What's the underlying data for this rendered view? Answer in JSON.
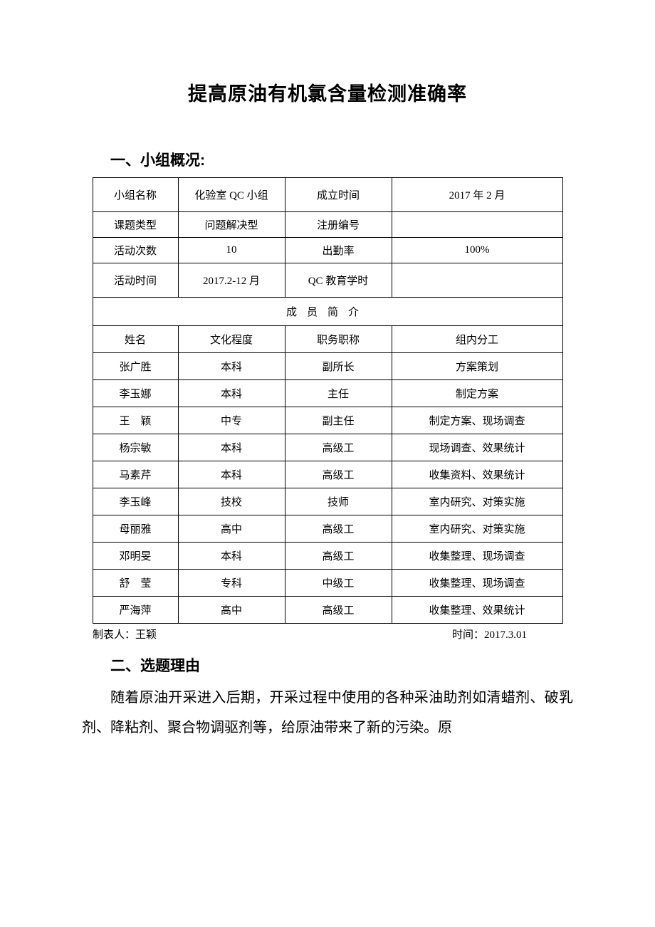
{
  "title": "提高原油有机氯含量检测准确率",
  "section1": {
    "heading": "一、小组概况:",
    "meta": [
      {
        "label": "小组名称",
        "value": "化验室 QC 小组",
        "label2": "成立时间",
        "value2": "2017 年 2 月"
      },
      {
        "label": "课题类型",
        "value": "问题解决型",
        "label2": "注册编号",
        "value2": ""
      },
      {
        "label": "活动次数",
        "value": "10",
        "label2": "出勤率",
        "value2": "100%"
      },
      {
        "label": "活动时间",
        "value": "2017.2-12 月",
        "label2": "QC 教育学时",
        "value2": ""
      }
    ],
    "members_header": "成员简介",
    "member_cols": {
      "name": "姓名",
      "edu": "文化程度",
      "title": "职务职称",
      "role": "组内分工"
    },
    "members": [
      {
        "name": "张广胜",
        "edu": "本科",
        "title": "副所长",
        "role": "方案策划"
      },
      {
        "name": "李玉娜",
        "edu": "本科",
        "title": "主任",
        "role": "制定方案"
      },
      {
        "name": "王　颖",
        "edu": "中专",
        "title": "副主任",
        "role": "制定方案、现场调查"
      },
      {
        "name": "杨宗敏",
        "edu": "本科",
        "title": "高级工",
        "role": "现场调查、效果统计"
      },
      {
        "name": "马素芹",
        "edu": "本科",
        "title": "高级工",
        "role": "收集资料、效果统计"
      },
      {
        "name": "李玉峰",
        "edu": "技校",
        "title": "技师",
        "role": "室内研究、对策实施"
      },
      {
        "name": "母丽雅",
        "edu": "高中",
        "title": "高级工",
        "role": "室内研究、对策实施"
      },
      {
        "name": "邓明旻",
        "edu": "本科",
        "title": "高级工",
        "role": "收集整理、现场调查"
      },
      {
        "name": "舒　莹",
        "edu": "专科",
        "title": "中级工",
        "role": "收集整理、现场调查"
      },
      {
        "name": "严海萍",
        "edu": "高中",
        "title": "高级工",
        "role": "收集整理、效果统计"
      }
    ],
    "footer_left": "制表人：王颖",
    "footer_right": "时间：2017.3.01"
  },
  "section2": {
    "heading": "二、选题理由",
    "para": "随着原油开采进入后期，开采过程中使用的各种采油助剂如清蜡剂、破乳剂、降粘剂、聚合物调驱剂等，给原油带来了新的污染。原"
  }
}
